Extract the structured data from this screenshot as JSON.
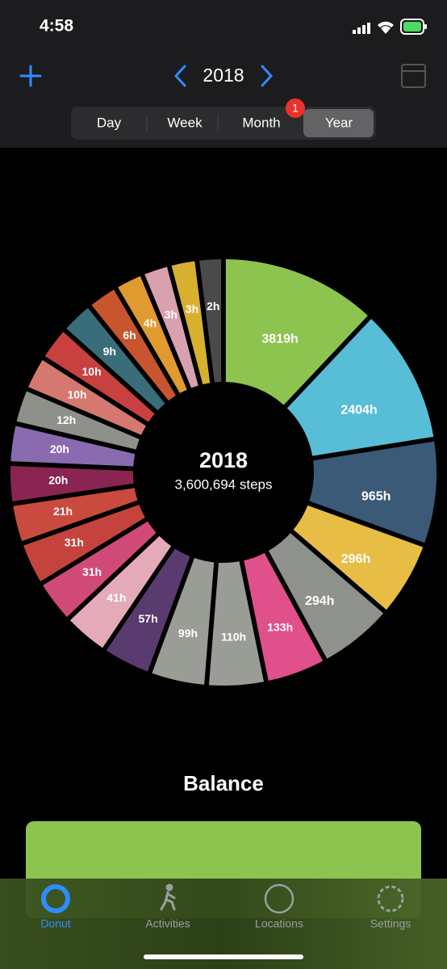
{
  "status": {
    "time": "4:58"
  },
  "header": {
    "year": "2018",
    "segments": [
      "Day",
      "Week",
      "Month",
      "Year"
    ],
    "badge": "1"
  },
  "donut": {
    "center_title": "2018",
    "center_subtitle": "3,600,694 steps",
    "values": [
      3819,
      2404,
      965,
      296,
      294,
      133,
      110,
      99,
      57,
      41,
      31,
      31,
      21,
      20,
      20,
      12,
      10,
      10,
      9,
      6,
      4,
      3,
      3,
      2
    ],
    "value_labels": [
      "3819h",
      "2404h",
      "965h",
      "296h",
      "294h",
      "133h",
      "110h",
      "99h",
      "57h",
      "41h",
      "31h",
      "31h",
      "21h",
      "20h",
      "20h",
      "12h",
      "10h",
      "10h",
      "9h",
      "6h",
      "4h",
      "3h",
      "3h",
      "2h"
    ],
    "colors": [
      "#8dc44f",
      "#58bdd6",
      "#3a5a78",
      "#e8bd45",
      "#8f928c",
      "#e0508a",
      "#9a9d96",
      "#9a9d96",
      "#5a3b70",
      "#e4aab8",
      "#d04a78",
      "#c4433c",
      "#c94a3e",
      "#8a2450",
      "#8a6bb0",
      "#8e918a",
      "#d47870",
      "#c94040",
      "#3a6d7a",
      "#c8552e",
      "#e09a30",
      "#d9a0b0",
      "#d8b030",
      "#4a4a4a"
    ]
  },
  "section": {
    "title": "Balance"
  },
  "tabs": [
    "Donut",
    "Activities",
    "Locations",
    "Settings"
  ]
}
